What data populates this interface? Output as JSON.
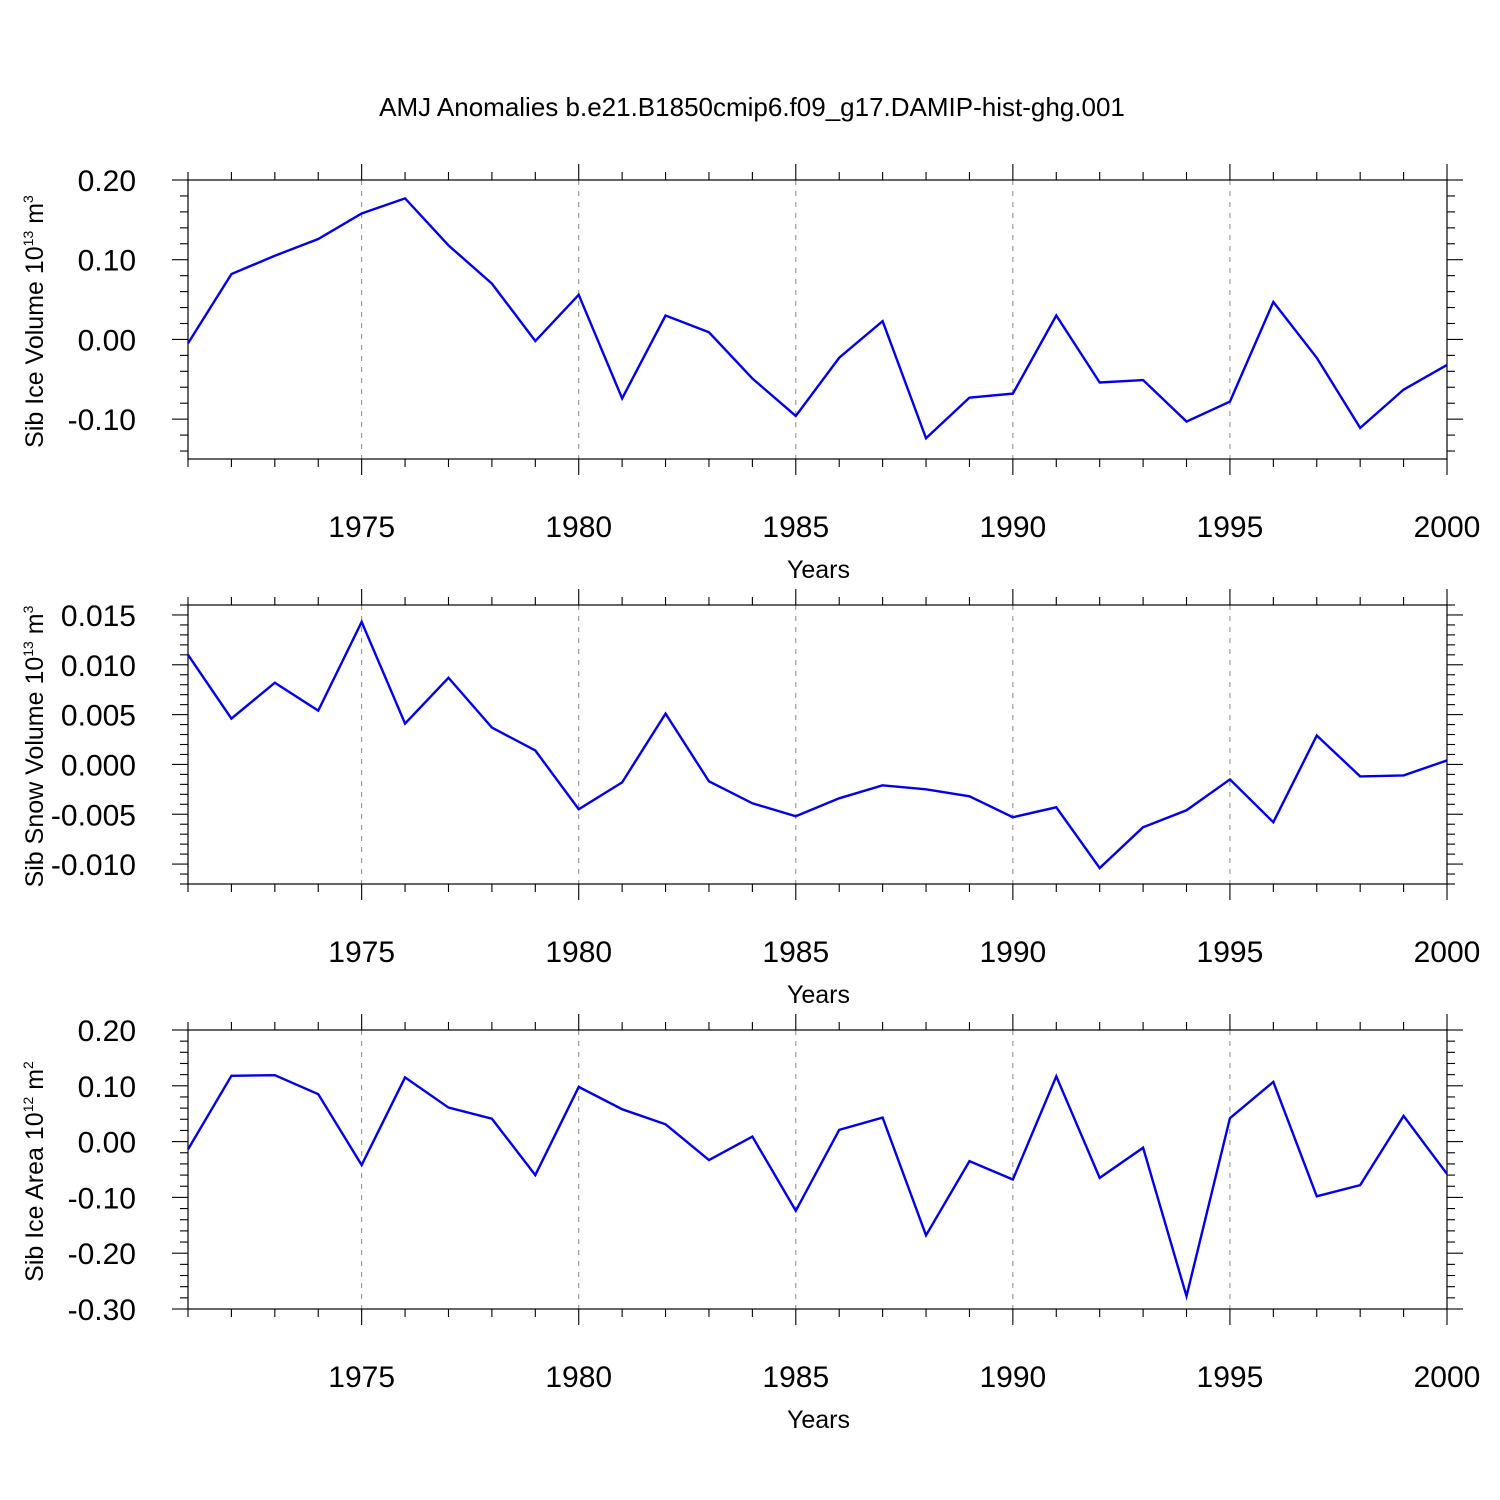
{
  "chart_data": {
    "type": "line",
    "title": "AMJ Anomalies b.e21.B1850cmip6.f09_g17.DAMIP-hist-ghg.001",
    "x": [
      1971,
      1972,
      1973,
      1974,
      1975,
      1976,
      1977,
      1978,
      1979,
      1980,
      1981,
      1982,
      1983,
      1984,
      1985,
      1986,
      1987,
      1988,
      1989,
      1990,
      1991,
      1992,
      1993,
      1994,
      1995,
      1996,
      1997,
      1998,
      1999,
      2000
    ],
    "xlim": [
      1971,
      2000
    ],
    "x_ticks": [
      1975,
      1980,
      1985,
      1990,
      1995,
      2000
    ],
    "x_tick_labels": [
      "1975",
      "1980",
      "1985",
      "1990",
      "1995",
      "2000"
    ],
    "x_minor_step": 1,
    "xlabel": "Years",
    "grid": "dashed vertical at major x ticks",
    "color": "#0000ee",
    "panels": [
      {
        "id": "ice-volume",
        "ylabel_main": "Sib Ice Volume 10",
        "ylabel_exp": "13",
        "ylabel_unit": " m",
        "ylabel_unit_exp": "3",
        "ylim": [
          -0.15,
          0.2
        ],
        "y_ticks": [
          -0.1,
          0.0,
          0.1,
          0.2
        ],
        "y_tick_labels": [
          "-0.10",
          "0.00",
          "0.10",
          "0.20"
        ],
        "y_minor_step": 0.02,
        "values": [
          -0.005,
          0.082,
          0.105,
          0.126,
          0.158,
          0.177,
          0.118,
          0.07,
          -0.002,
          0.056,
          -0.074,
          0.03,
          0.009,
          -0.049,
          -0.096,
          -0.023,
          0.023,
          -0.124,
          -0.073,
          -0.068,
          0.03,
          -0.054,
          -0.051,
          -0.103,
          -0.078,
          0.047,
          -0.023,
          -0.111,
          -0.063,
          -0.032
        ]
      },
      {
        "id": "snow-volume",
        "ylabel_main": "Sib Snow Volume 10",
        "ylabel_exp": "13",
        "ylabel_unit": " m",
        "ylabel_unit_exp": "3",
        "ylim": [
          -0.012,
          0.016
        ],
        "y_ticks": [
          -0.01,
          -0.005,
          0.0,
          0.005,
          0.01,
          0.015
        ],
        "y_tick_labels": [
          "-0.010",
          "-0.005",
          "0.000",
          "0.005",
          "0.010",
          "0.015"
        ],
        "y_minor_step": 0.001,
        "values": [
          0.011,
          0.0046,
          0.0082,
          0.0054,
          0.0143,
          0.0041,
          0.0087,
          0.0037,
          0.0014,
          -0.0045,
          -0.0018,
          0.0051,
          -0.0017,
          -0.0039,
          -0.0052,
          -0.0034,
          -0.0021,
          -0.0025,
          -0.0032,
          -0.0053,
          -0.0043,
          -0.0104,
          -0.0063,
          -0.0046,
          -0.0015,
          -0.0058,
          0.0029,
          -0.0012,
          -0.0011,
          0.0004
        ]
      },
      {
        "id": "ice-area",
        "ylabel_main": "Sib Ice Area 10",
        "ylabel_exp": "12",
        "ylabel_unit": " m",
        "ylabel_unit_exp": "2",
        "ylim": [
          -0.3,
          0.2
        ],
        "y_ticks": [
          -0.3,
          -0.2,
          -0.1,
          0.0,
          0.1,
          0.2
        ],
        "y_tick_labels": [
          "-0.30",
          "-0.20",
          "-0.10",
          "0.00",
          "0.10",
          "0.20"
        ],
        "y_minor_step": 0.02,
        "values": [
          -0.014,
          0.118,
          0.119,
          0.085,
          -0.042,
          0.115,
          0.061,
          0.041,
          -0.06,
          0.098,
          0.058,
          0.031,
          -0.033,
          0.009,
          -0.124,
          0.021,
          0.043,
          -0.168,
          -0.035,
          -0.068,
          0.117,
          -0.065,
          -0.011,
          -0.277,
          0.042,
          0.107,
          -0.098,
          -0.078,
          0.046,
          -0.058
        ]
      }
    ]
  }
}
